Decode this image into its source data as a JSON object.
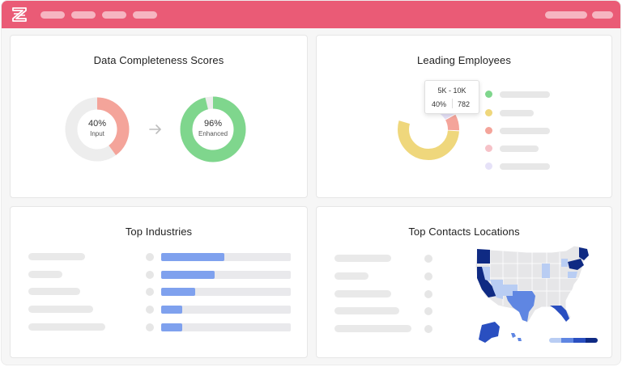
{
  "app": {
    "brand_color": "#ea5b76",
    "logo_icon": "zoominfo-z-icon"
  },
  "completeness": {
    "title": "Data Completeness Scores",
    "input": {
      "percent": "40%",
      "label": "Input",
      "value": 0.4,
      "color": "#f4a49a"
    },
    "enhanced": {
      "percent": "96%",
      "label": "Enhanced",
      "value": 0.96,
      "color": "#7fd68d"
    },
    "arrow_icon": "arrow-right-icon"
  },
  "employees": {
    "title": "Leading Employees",
    "tooltip": {
      "title": "5K - 10K",
      "percent": "40%",
      "count": "782"
    },
    "segments": [
      {
        "color": "#7fd68d",
        "value": 0.28
      },
      {
        "color": "#e6e2f8",
        "value": 0.09
      },
      {
        "color": "#f4a49a",
        "value": 0.09
      },
      {
        "color": "#efd77c",
        "value": 0.54
      }
    ],
    "legend": [
      {
        "color": "#7fd68d"
      },
      {
        "color": "#efd77c"
      },
      {
        "color": "#f4a49a"
      },
      {
        "color": "#f6c2c8"
      },
      {
        "color": "#e6e2f8"
      }
    ]
  },
  "industries": {
    "title": "Top Industries",
    "bar_color": "#7fa1ee",
    "rows": [
      {
        "value": 0.49
      },
      {
        "value": 0.41
      },
      {
        "value": 0.26
      },
      {
        "value": 0.16
      },
      {
        "value": 0.16
      }
    ]
  },
  "locations": {
    "title": "Top Contacts Locations",
    "scale_colors": [
      "#b9cdf3",
      "#5f86e2",
      "#2a4fc0",
      "#0f2a83"
    ]
  }
}
